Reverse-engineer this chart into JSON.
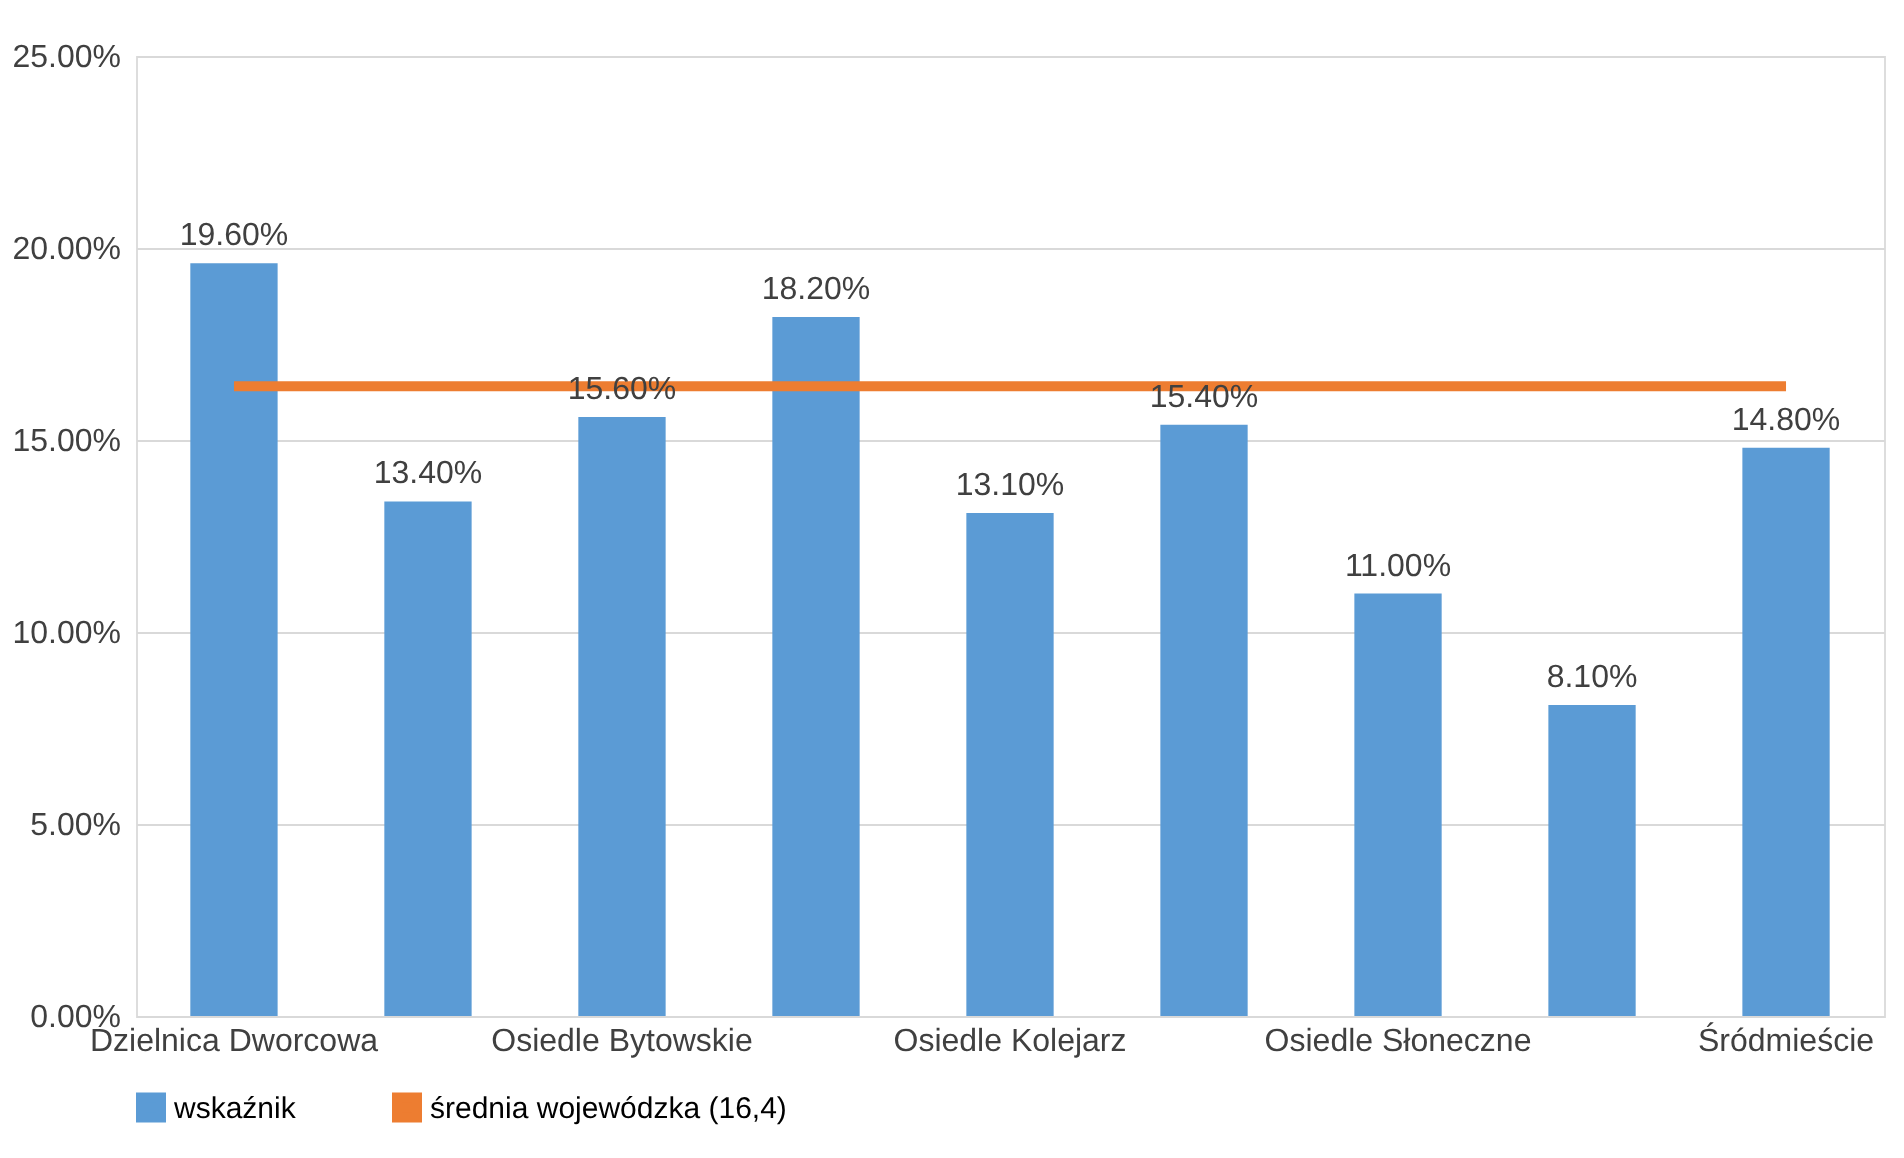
{
  "chart_data": {
    "type": "bar",
    "categories": [
      "Dzielnica Dworcowa",
      null,
      "Osiedle Bytowskie",
      null,
      "Osiedle Kolejarz",
      null,
      "Osiedle Słoneczne",
      null,
      "Śródmieście"
    ],
    "series": [
      {
        "name": "wskaźnik",
        "color": "#5b9bd5",
        "values": [
          19.6,
          13.4,
          15.6,
          18.2,
          13.1,
          15.4,
          11.0,
          8.1,
          14.8
        ],
        "value_labels": [
          "19.60%",
          "13.40%",
          "15.60%",
          "18.20%",
          "13.10%",
          "15.40%",
          "11.00%",
          "8.10%",
          "14.80%"
        ]
      },
      {
        "name": "średnia wojewódzka (16,4)",
        "type": "line",
        "color": "#ed7d31",
        "values": [
          16.4,
          16.4,
          16.4,
          16.4,
          16.4,
          16.4,
          16.4,
          16.4,
          16.4
        ]
      }
    ],
    "ylim": [
      0,
      25
    ],
    "yticks": [
      {
        "value": 0,
        "label": "0.00%"
      },
      {
        "value": 5,
        "label": "5.00%"
      },
      {
        "value": 10,
        "label": "10.00%"
      },
      {
        "value": 15,
        "label": "15.00%"
      },
      {
        "value": 20,
        "label": "20.00%"
      },
      {
        "value": 25,
        "label": "25.00%"
      }
    ],
    "grid": "y",
    "legend": "bottom"
  }
}
